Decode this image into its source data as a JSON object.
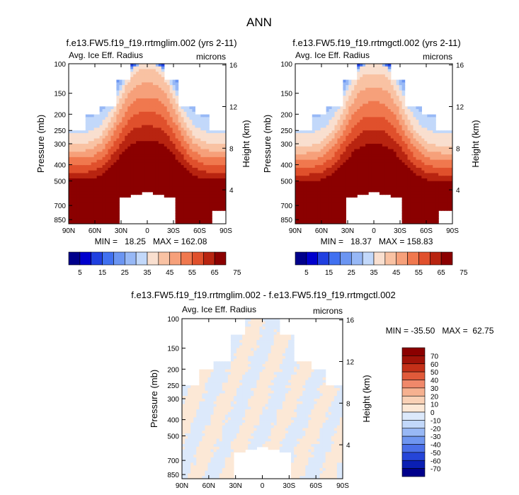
{
  "figure_title": "ANN",
  "colors": {
    "palette_13": [
      "#00008b",
      "#0000cd",
      "#2040e0",
      "#4070f0",
      "#6b95f2",
      "#97b8f6",
      "#c2d8fa",
      "#f9dfcf",
      "#f9c2a3",
      "#f6a07a",
      "#f0784e",
      "#e0502c",
      "#b82410",
      "#8b0000"
    ],
    "diff_palette": [
      "#00008b",
      "#0a1fb3",
      "#2545d8",
      "#4a6fe8",
      "#6f96f0",
      "#98b8f5",
      "#c2d8fa",
      "#dce9fb",
      "#fce8d6",
      "#f9d1b6",
      "#f6b190",
      "#f0886a",
      "#e05a3a",
      "#c43018",
      "#a01208",
      "#8b0000"
    ],
    "masked": "#ffffff"
  },
  "panels": [
    {
      "name": "rrtmglim",
      "title": "f.e13.FW5.f19_f19.rrtmglim.002 (yrs 2-11)",
      "left_label": "Avg. Ice Eff. Radius",
      "right_label": "microns",
      "stats": "MIN =   18.25   MAX = 162.08"
    },
    {
      "name": "rrtmgctl",
      "title": "f.e13.FW5.f19_f19.rrtmgctl.002 (yrs 2-11)",
      "left_label": "Avg. Ice Eff. Radius",
      "right_label": "microns",
      "stats": "MIN =   18.37   MAX = 158.83"
    },
    {
      "name": "difference",
      "title": "f.e13.FW5.f19_f19.rrtmglim.002 - f.e13.FW5.f19_f19.rrtmgctl.002",
      "left_label": "Avg. Ice Eff. Radius",
      "right_label": "microns",
      "stats": "MIN = -35.50   MAX =  62.75"
    }
  ],
  "axes": {
    "ylabel_left": "Pressure (mb)",
    "ylabel_right": "Height (km)",
    "x_ticks": [
      "90N",
      "60N",
      "30N",
      "0",
      "30S",
      "60S",
      "90S"
    ],
    "p_ticks": [
      "100",
      "150",
      "200",
      "250",
      "300",
      "400",
      "500",
      "700",
      "850"
    ],
    "h_ticks": [
      "16",
      "12",
      "8",
      "4"
    ]
  },
  "colorbar_top_labels": [
    "5",
    "15",
    "25",
    "35",
    "45",
    "55",
    "65",
    "75"
  ],
  "colorbar_diff_labels": [
    "70",
    "60",
    "50",
    "40",
    "30",
    "20",
    "10",
    "0",
    "-10",
    "-20",
    "-30",
    "-40",
    "-50",
    "-60",
    "-70"
  ],
  "chart_data": [
    {
      "type": "heatmap",
      "title": "f.e13.FW5.f19_f19.rrtmglim.002 (yrs 2-11)",
      "variable": "Avg. Ice Eff. Radius",
      "units": "microns",
      "x": "latitude 90N to 90S",
      "y": "pressure (mb) 100-850, log scale",
      "levels": [
        5,
        10,
        15,
        20,
        25,
        30,
        35,
        40,
        45,
        50,
        55,
        60,
        65,
        70,
        75
      ],
      "min": 18.25,
      "max": 162.08
    },
    {
      "type": "heatmap",
      "title": "f.e13.FW5.f19_f19.rrtmgctl.002 (yrs 2-11)",
      "variable": "Avg. Ice Eff. Radius",
      "units": "microns",
      "x": "latitude 90N to 90S",
      "y": "pressure (mb) 100-850, log scale",
      "levels": [
        5,
        10,
        15,
        20,
        25,
        30,
        35,
        40,
        45,
        50,
        55,
        60,
        65,
        70,
        75
      ],
      "min": 18.37,
      "max": 158.83
    },
    {
      "type": "heatmap",
      "title": "f.e13.FW5.f19_f19.rrtmglim.002 - f.e13.FW5.f19_f19.rrtmgctl.002",
      "variable": "Avg. Ice Eff. Radius difference",
      "units": "microns",
      "levels": [
        -70,
        -60,
        -50,
        -40,
        -30,
        -20,
        -10,
        0,
        10,
        20,
        30,
        40,
        50,
        60,
        70
      ],
      "min": -35.5,
      "max": 62.75
    }
  ]
}
